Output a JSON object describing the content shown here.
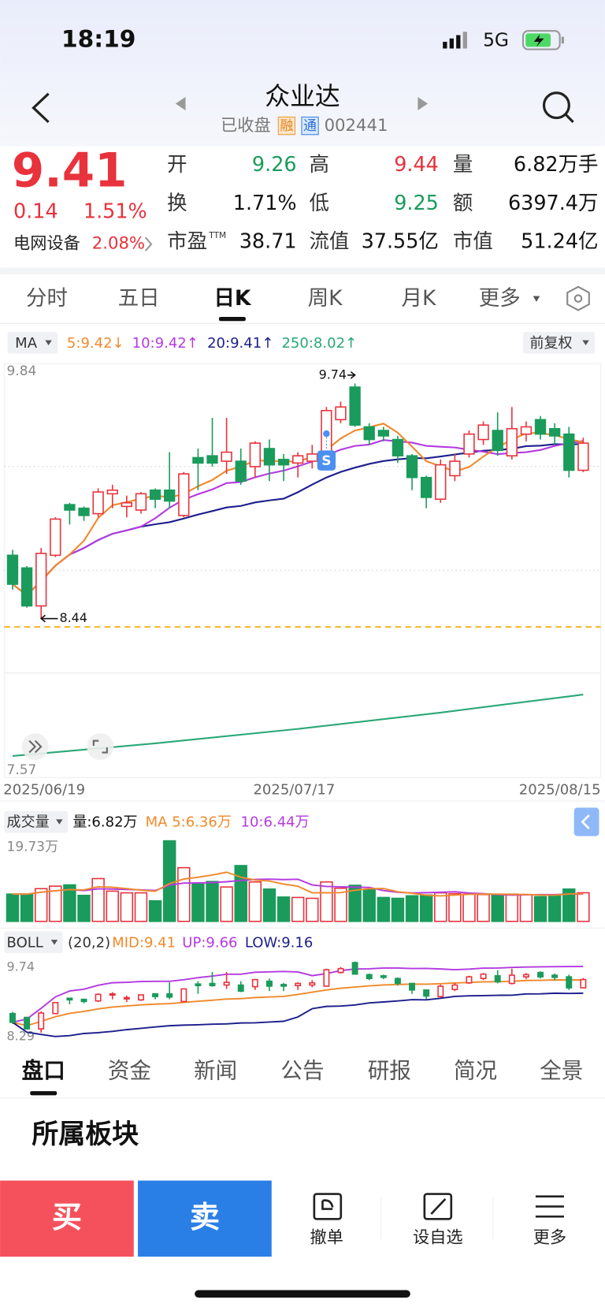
{
  "status": {
    "time": "18:19",
    "network": "5G"
  },
  "header": {
    "title": "众业达",
    "state": "已收盘",
    "badges": [
      "融",
      "通"
    ],
    "code": "002441"
  },
  "quote": {
    "price": "9.41",
    "change": "0.14",
    "change_pct": "1.51%",
    "sector": "电网设备",
    "sector_pct": "2.08%",
    "fields": [
      {
        "label": "开",
        "value": "9.26",
        "color": "green"
      },
      {
        "label": "高",
        "value": "9.44",
        "color": "red"
      },
      {
        "label": "量",
        "value": "6.82万手",
        "color": "black"
      },
      {
        "label": "换",
        "value": "1.71%",
        "color": "black"
      },
      {
        "label": "低",
        "value": "9.25",
        "color": "green"
      },
      {
        "label": "额",
        "value": "6397.4万",
        "color": "black"
      },
      {
        "label": "市盈",
        "sup": "TTM",
        "value": "38.71",
        "color": "black"
      },
      {
        "label": "流值",
        "value": "37.55亿",
        "color": "black"
      },
      {
        "label": "市值",
        "value": "51.24亿",
        "color": "black"
      }
    ]
  },
  "tabs": {
    "items": [
      "分时",
      "五日",
      "日K",
      "周K",
      "月K",
      "更多"
    ],
    "active": 2
  },
  "ma_legend": {
    "label": "MA",
    "items": [
      {
        "text": "5:9.42↓",
        "color": "#f08a2c"
      },
      {
        "text": "10:9.42↑",
        "color": "#b43ae0"
      },
      {
        "text": "20:9.41↑",
        "color": "#1c1e8c"
      },
      {
        "text": "250:8.02↑",
        "color": "#2aa876"
      }
    ],
    "adjust": "前复权"
  },
  "kline": {
    "ylim": [
      7.57,
      9.84
    ],
    "yticks": [
      {
        "value": 9.84,
        "label": "9.84"
      },
      {
        "value": 7.57,
        "label": "7.57"
      }
    ],
    "high_label": "9.74",
    "high_value": 9.74,
    "high_index": 24,
    "low_label": "8.44",
    "low_value": 8.44,
    "low_index": 2,
    "marker": "S",
    "marker_index": 22,
    "dates": [
      "2025/06/19",
      "2025/07/17",
      "2025/08/15"
    ],
    "date_index": [
      0,
      20,
      40
    ],
    "open": [
      8.79,
      8.72,
      8.51,
      8.79,
      9.07,
      9.05,
      9.02,
      9.13,
      9.06,
      9.04,
      9.15,
      9.15,
      9.01,
      9.33,
      9.34,
      9.31,
      9.31,
      9.28,
      9.38,
      9.32,
      9.3,
      9.31,
      9.29,
      9.54,
      9.72,
      9.5,
      9.48,
      9.43,
      9.34,
      9.22,
      9.1,
      9.23,
      9.35,
      9.43,
      9.48,
      9.34,
      9.46,
      9.54,
      9.49,
      9.46,
      9.26
    ],
    "high": [
      8.82,
      8.73,
      8.83,
      9.0,
      9.08,
      9.06,
      9.16,
      9.18,
      9.12,
      9.14,
      9.16,
      9.36,
      9.25,
      9.38,
      9.55,
      9.55,
      9.38,
      9.42,
      9.43,
      9.35,
      9.36,
      9.4,
      9.61,
      9.64,
      9.74,
      9.52,
      9.5,
      9.45,
      9.35,
      9.23,
      9.32,
      9.35,
      9.48,
      9.53,
      9.58,
      9.61,
      9.53,
      9.56,
      9.52,
      9.5,
      9.44
    ],
    "low": [
      8.6,
      8.5,
      8.44,
      8.78,
      8.96,
      8.98,
      9.0,
      9.05,
      9.0,
      9.02,
      9.05,
      9.05,
      9.0,
      9.15,
      9.28,
      9.24,
      9.18,
      9.22,
      9.2,
      9.2,
      9.22,
      9.27,
      9.28,
      9.52,
      9.5,
      9.4,
      9.42,
      9.3,
      9.15,
      9.05,
      9.08,
      9.2,
      9.33,
      9.4,
      9.34,
      9.32,
      9.42,
      9.43,
      9.4,
      9.22,
      9.25
    ],
    "close": [
      8.63,
      8.51,
      8.8,
      8.99,
      9.04,
      9.01,
      9.14,
      9.15,
      9.08,
      9.13,
      9.1,
      9.09,
      9.24,
      9.3,
      9.3,
      9.36,
      9.2,
      9.41,
      9.29,
      9.29,
      9.34,
      9.35,
      9.59,
      9.61,
      9.51,
      9.43,
      9.45,
      9.34,
      9.22,
      9.11,
      9.29,
      9.31,
      9.46,
      9.51,
      9.37,
      9.49,
      9.5,
      9.46,
      9.45,
      9.26,
      9.41
    ],
    "ma250": {
      "index": [
        0,
        10,
        20,
        30,
        40
      ],
      "values": [
        7.68,
        7.75,
        7.83,
        7.92,
        8.02
      ]
    }
  },
  "volume": {
    "label": "成交量",
    "vol": "量:6.82万",
    "ma5": "MA 5:6.36万",
    "ma10": "10:6.44万",
    "max_label": "19.73万",
    "ylim": [
      0,
      19.73
    ],
    "values": [
      6.5,
      6.5,
      7.8,
      8.4,
      8.7,
      6.2,
      10.2,
      7.2,
      6.8,
      6.8,
      4.9,
      19.2,
      12.8,
      8.9,
      9.5,
      8.2,
      13.3,
      9.4,
      7.7,
      5.8,
      5.7,
      5.5,
      9.4,
      7.9,
      8.6,
      7.6,
      5.7,
      5.5,
      6.1,
      6.3,
      6.8,
      6.6,
      6.5,
      6.4,
      6.2,
      6.5,
      6.4,
      5.9,
      6.2,
      7.7,
      6.82
    ]
  },
  "boll": {
    "label": "BOLL",
    "params": "(20,2)",
    "mid": "MID:9.41",
    "up": "UP:9.66",
    "low": "LOW:9.16",
    "ylim": [
      8.29,
      9.74
    ],
    "top_label": "9.74",
    "bottom_label": "8.29"
  },
  "info_tabs": {
    "items": [
      "盘口",
      "资金",
      "新闻",
      "公告",
      "研报",
      "简况",
      "全景"
    ],
    "active": 0
  },
  "section": "所属板块",
  "actions": {
    "buy": "买",
    "sell": "卖",
    "tools": [
      "撤单",
      "设自选",
      "更多"
    ]
  }
}
